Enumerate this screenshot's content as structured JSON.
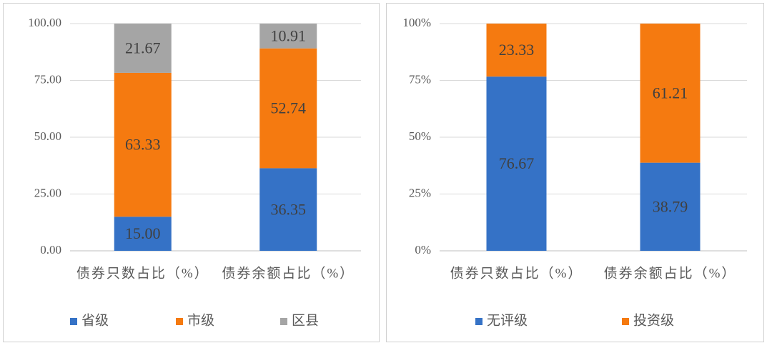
{
  "chart_data": [
    {
      "type": "stacked-bar",
      "categories": [
        "债券只数占比（%）",
        "债券余额占比（%）"
      ],
      "series": [
        {
          "name": "省级",
          "color": "#3572c6",
          "values": [
            15.0,
            36.35
          ],
          "value_labels": [
            "15.00",
            "36.35"
          ]
        },
        {
          "name": "市级",
          "color": "#f57a10",
          "values": [
            63.33,
            52.74
          ],
          "value_labels": [
            "63.33",
            "52.74"
          ]
        },
        {
          "name": "区县",
          "color": "#a5a5a5",
          "values": [
            21.67,
            10.91
          ],
          "value_labels": [
            "21.67",
            "10.91"
          ]
        }
      ],
      "ylim": [
        0,
        100
      ],
      "yticks": [
        {
          "value": 0,
          "label": "0.00"
        },
        {
          "value": 25,
          "label": "25.00"
        },
        {
          "value": 50,
          "label": "50.00"
        },
        {
          "value": 75,
          "label": "75.00"
        },
        {
          "value": 100,
          "label": "100.00"
        }
      ],
      "grid": true,
      "legend": "bottom"
    },
    {
      "type": "stacked-bar",
      "categories": [
        "债券只数占比（%）",
        "债券余额占比（%）"
      ],
      "series": [
        {
          "name": "无评级",
          "color": "#3572c6",
          "values": [
            76.67,
            38.79
          ]
        },
        {
          "name": "投资级",
          "color": "#f57a10",
          "values": [
            23.33,
            61.21
          ]
        }
      ],
      "ylim": [
        0,
        100
      ],
      "yticks": [
        {
          "value": 0,
          "label": "0%"
        },
        {
          "value": 25,
          "label": "25%"
        },
        {
          "value": 50,
          "label": "50%"
        },
        {
          "value": 75,
          "label": "75%"
        },
        {
          "value": 100,
          "label": "100%"
        }
      ],
      "grid": true,
      "legend": "bottom"
    }
  ]
}
